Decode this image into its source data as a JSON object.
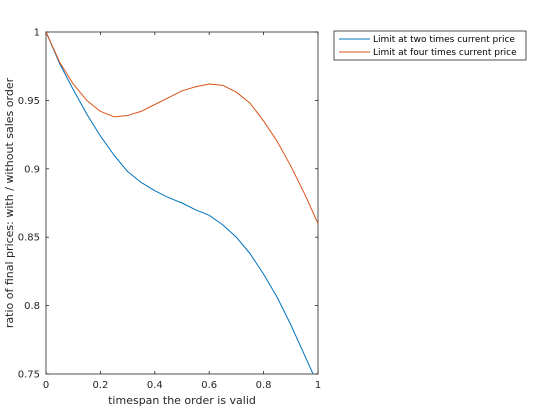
{
  "chart_data": {
    "type": "line",
    "xlabel": "timespan the order is valid",
    "ylabel": "ratio of final prices: with / without sales order",
    "xlim": [
      0,
      1
    ],
    "ylim": [
      0.75,
      1
    ],
    "xticks": [
      0,
      0.2,
      0.4,
      0.6,
      0.8,
      1
    ],
    "xtick_labels": [
      "0",
      "0.2",
      "0.4",
      "0.6",
      "0.8",
      "1"
    ],
    "yticks": [
      0.75,
      0.8,
      0.85,
      0.9,
      0.95,
      1
    ],
    "ytick_labels": [
      "0.75",
      "0.8",
      "0.85",
      "0.9",
      "0.95",
      "1"
    ],
    "grid": false,
    "legend_position": "outside-top-right",
    "series": [
      {
        "name": "Limit at two times current price",
        "color": "#0072BD",
        "x": [
          0,
          0.05,
          0.1,
          0.15,
          0.2,
          0.25,
          0.3,
          0.35,
          0.4,
          0.45,
          0.5,
          0.55,
          0.6,
          0.65,
          0.7,
          0.75,
          0.8,
          0.85,
          0.9,
          0.95,
          1
        ],
        "y": [
          1,
          0.977,
          0.958,
          0.94,
          0.924,
          0.91,
          0.898,
          0.89,
          0.884,
          0.879,
          0.875,
          0.87,
          0.866,
          0.859,
          0.85,
          0.838,
          0.823,
          0.806,
          0.786,
          0.764,
          0.742
        ]
      },
      {
        "name": "Limit at four times current price",
        "color": "#D95319",
        "x": [
          0,
          0.05,
          0.1,
          0.15,
          0.2,
          0.25,
          0.3,
          0.35,
          0.4,
          0.45,
          0.5,
          0.55,
          0.6,
          0.65,
          0.7,
          0.75,
          0.8,
          0.85,
          0.9,
          0.95,
          1
        ],
        "y": [
          1,
          0.978,
          0.962,
          0.95,
          0.942,
          0.938,
          0.939,
          0.942,
          0.947,
          0.952,
          0.957,
          0.96,
          0.962,
          0.961,
          0.956,
          0.948,
          0.935,
          0.92,
          0.902,
          0.882,
          0.86
        ]
      }
    ]
  }
}
